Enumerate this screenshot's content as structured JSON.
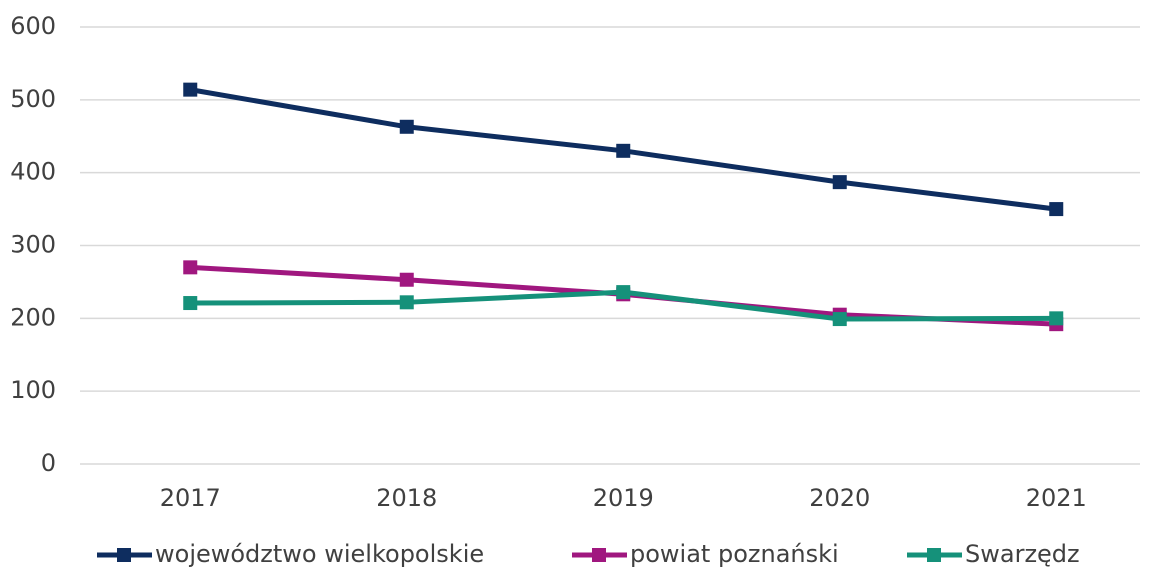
{
  "chart_data": {
    "type": "line",
    "categories": [
      "2017",
      "2018",
      "2019",
      "2020",
      "2021"
    ],
    "series": [
      {
        "name": "województwo wielkopolskie",
        "color": "#0e2d5f",
        "values": [
          514,
          463,
          430,
          387,
          350
        ]
      },
      {
        "name": "powiat poznański",
        "color": "#a0177f",
        "values": [
          270,
          253,
          233,
          205,
          192
        ]
      },
      {
        "name": "Swarzędz",
        "color": "#15917a",
        "values": [
          221,
          222,
          236,
          199,
          200
        ]
      }
    ],
    "ylim": [
      0,
      600
    ],
    "yticks": [
      0,
      100,
      200,
      300,
      400,
      500,
      600
    ],
    "grid": true,
    "legend": "bottom"
  }
}
